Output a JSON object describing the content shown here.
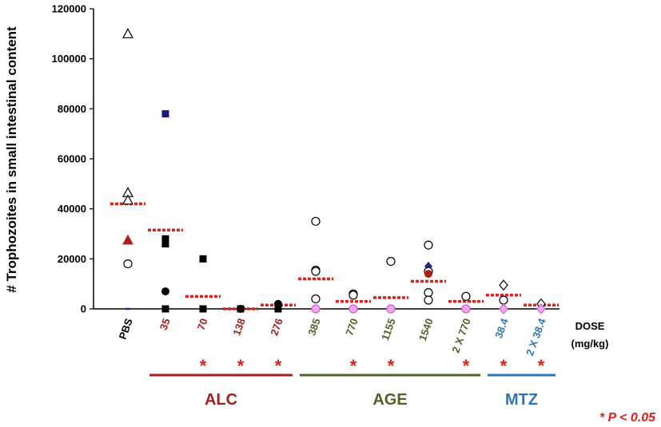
{
  "chart_data": {
    "type": "scatter",
    "ylabel": "# Trophozoites in small intestinal content",
    "ylim": [
      0,
      120000
    ],
    "yticks": [
      "0",
      "20000",
      "40000",
      "60000",
      "80000",
      "100000",
      "120000"
    ],
    "ytick_values": [
      0,
      20000,
      40000,
      60000,
      80000,
      100000,
      120000
    ],
    "dose_label_line1": "DOSE",
    "dose_label_line2": "(mg/kg)",
    "categories": [
      {
        "label": "PBS",
        "group": "control",
        "significant": false,
        "mean": 42000,
        "points": [
          {
            "y": 110000,
            "marker": "triangle-open",
            "color": "#000000"
          },
          {
            "y": 46500,
            "marker": "triangle-open",
            "color": "#000000"
          },
          {
            "y": 43500,
            "marker": "triangle-open",
            "color": "#000000"
          },
          {
            "y": 27500,
            "marker": "triangle-filled",
            "color": "#b01c1c"
          },
          {
            "y": 18000,
            "marker": "circle-open",
            "color": "#000000"
          },
          {
            "y": 0,
            "marker": "dash",
            "color": "#1f2f8f"
          }
        ]
      },
      {
        "label": "35",
        "group": "ALC",
        "significant": false,
        "mean": 31500,
        "points": [
          {
            "y": 78000,
            "marker": "square-filled",
            "color": "#1a1a7a"
          },
          {
            "y": 28000,
            "marker": "square-filled",
            "color": "#000000"
          },
          {
            "y": 26000,
            "marker": "square-filled",
            "color": "#000000"
          },
          {
            "y": 7000,
            "marker": "circle-filled",
            "color": "#000000"
          },
          {
            "y": 0,
            "marker": "square-filled",
            "color": "#000000"
          }
        ]
      },
      {
        "label": "70",
        "group": "ALC",
        "significant": true,
        "mean": 5000,
        "points": [
          {
            "y": 20000,
            "marker": "square-filled",
            "color": "#000000"
          },
          {
            "y": 0,
            "marker": "square-filled",
            "color": "#000000"
          },
          {
            "y": 0,
            "marker": "square-filled",
            "color": "#000000"
          }
        ]
      },
      {
        "label": "138",
        "group": "ALC",
        "significant": true,
        "mean": 0,
        "points": [
          {
            "y": 0,
            "marker": "square-filled",
            "color": "#000000"
          },
          {
            "y": 0,
            "marker": "circle-filled",
            "color": "#000000"
          }
        ]
      },
      {
        "label": "276",
        "group": "ALC",
        "significant": true,
        "mean": 1500,
        "points": [
          {
            "y": 2000,
            "marker": "circle-filled",
            "color": "#000000"
          },
          {
            "y": 0,
            "marker": "square-filled",
            "color": "#000000"
          }
        ]
      },
      {
        "label": "385",
        "group": "AGE",
        "significant": false,
        "mean": 12000,
        "points": [
          {
            "y": 35000,
            "marker": "circle-open",
            "color": "#000000"
          },
          {
            "y": 15500,
            "marker": "circle-open",
            "color": "#000000"
          },
          {
            "y": 15000,
            "marker": "circle-open",
            "color": "#000000"
          },
          {
            "y": 4000,
            "marker": "circle-open",
            "color": "#000000"
          },
          {
            "y": 0,
            "marker": "circle-pink",
            "color": "#d35fd3"
          }
        ]
      },
      {
        "label": "770",
        "group": "AGE",
        "significant": true,
        "mean": 3000,
        "points": [
          {
            "y": 6000,
            "marker": "circle-open",
            "color": "#000000"
          },
          {
            "y": 5500,
            "marker": "circle-open",
            "color": "#000000"
          },
          {
            "y": 0,
            "marker": "circle-pink",
            "color": "#d35fd3"
          }
        ]
      },
      {
        "label": "1155",
        "group": "AGE",
        "significant": true,
        "mean": 4500,
        "points": [
          {
            "y": 19000,
            "marker": "circle-open",
            "color": "#000000"
          },
          {
            "y": 0,
            "marker": "circle-pink",
            "color": "#d35fd3"
          }
        ]
      },
      {
        "label": "1540",
        "group": "AGE",
        "significant": false,
        "mean": 11000,
        "points": [
          {
            "y": 25500,
            "marker": "circle-open",
            "color": "#000000"
          },
          {
            "y": 17000,
            "marker": "diamond-filled",
            "color": "#2a2a8a"
          },
          {
            "y": 15000,
            "marker": "circle-open",
            "color": "#000000"
          },
          {
            "y": 14000,
            "marker": "circle-filled",
            "color": "#b01c1c"
          },
          {
            "y": 6500,
            "marker": "circle-open",
            "color": "#000000"
          },
          {
            "y": 3500,
            "marker": "circle-open",
            "color": "#000000"
          }
        ]
      },
      {
        "label": "2 X 770",
        "group": "AGE",
        "significant": true,
        "mean": 3000,
        "points": [
          {
            "y": 5000,
            "marker": "circle-open",
            "color": "#000000"
          },
          {
            "y": 0,
            "marker": "circle-pink",
            "color": "#d35fd3"
          }
        ]
      },
      {
        "label": "38.4",
        "group": "MTZ",
        "significant": true,
        "mean": 5500,
        "points": [
          {
            "y": 9500,
            "marker": "diamond-open",
            "color": "#000000"
          },
          {
            "y": 3500,
            "marker": "circle-open",
            "color": "#000000"
          },
          {
            "y": 0,
            "marker": "diamond-pink",
            "color": "#d35fd3"
          }
        ]
      },
      {
        "label": "2 X 38.4",
        "group": "MTZ",
        "significant": true,
        "mean": 1500,
        "points": [
          {
            "y": 2000,
            "marker": "diamond-open",
            "color": "#000000"
          },
          {
            "y": 0,
            "marker": "diamond-pink",
            "color": "#d35fd3"
          }
        ]
      }
    ],
    "groups": [
      {
        "name": "ALC",
        "color": "#a51e1e",
        "from": 1,
        "to": 4
      },
      {
        "name": "AGE",
        "color": "#4f6228",
        "from": 5,
        "to": 9
      },
      {
        "name": "MTZ",
        "color": "#2e75b6",
        "from": 10,
        "to": 11
      }
    ],
    "mean_line_color": "#e0201c",
    "significance_marker": "*",
    "significance_note": "* P < 0.05",
    "colors": {
      "control": "#000000",
      "ALC": "#a51e1e",
      "AGE": "#4f6228",
      "MTZ": "#2e75b6"
    }
  }
}
